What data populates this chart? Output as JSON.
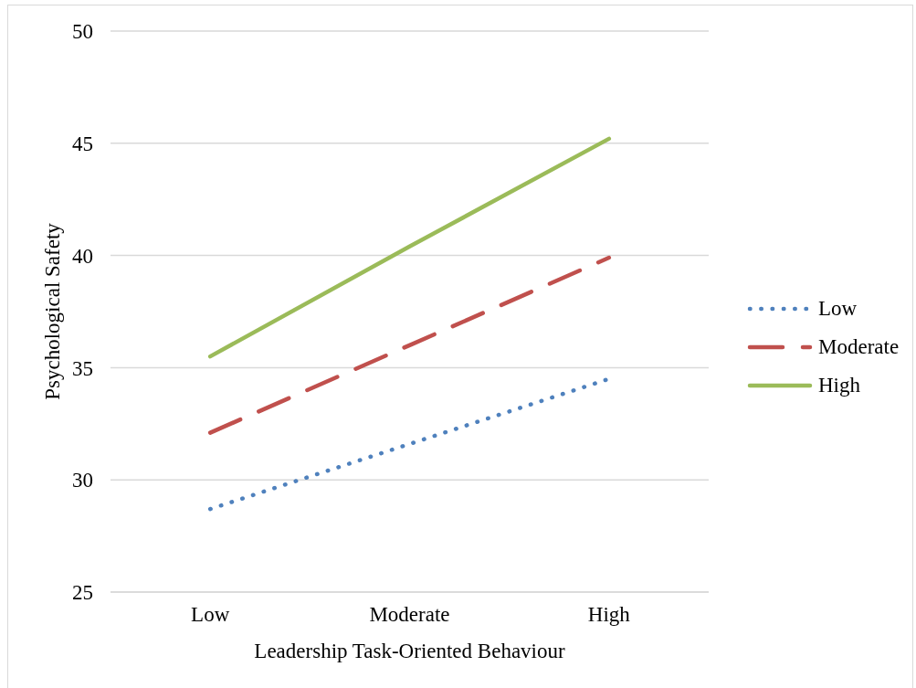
{
  "chart_data": {
    "type": "line",
    "xlabel": "Leadership Task-Oriented Behaviour",
    "ylabel": "Psychological Safety",
    "categories": [
      "Low",
      "Moderate",
      "High"
    ],
    "series": [
      {
        "name": "Low",
        "color": "#4f81bd",
        "line_style": "dotted",
        "values": [
          28.7,
          31.6,
          34.5
        ]
      },
      {
        "name": "Moderate",
        "color": "#c0504d",
        "line_style": "dashed",
        "values": [
          32.1,
          36.0,
          39.9
        ]
      },
      {
        "name": "High",
        "color": "#9bbb59",
        "line_style": "solid",
        "values": [
          35.5,
          40.4,
          45.2
        ]
      }
    ],
    "ylim": [
      25,
      50
    ],
    "yticks": [
      25,
      30,
      35,
      40,
      45,
      50
    ],
    "grid": "y",
    "legend": "right",
    "marker": "none"
  }
}
